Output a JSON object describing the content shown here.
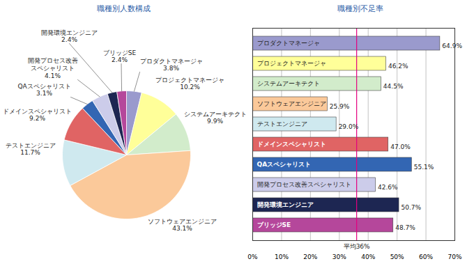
{
  "chart_data": [
    {
      "type": "pie",
      "title": "職種別人数構成",
      "categories": [
        "プロダクトマネージャ",
        "プロジェクトマネージャ",
        "システムアーキテクト",
        "ソフトウェアエンジニア",
        "テストエンジニア",
        "ドメインスペシャリスト",
        "QAスペシャリスト",
        "開発プロセス改善スペシャリスト",
        "開発環境エンジニア",
        "ブリッジSE"
      ],
      "values": [
        3.8,
        10.2,
        9.9,
        43.1,
        11.7,
        9.2,
        3.1,
        4.1,
        2.4,
        2.4
      ],
      "value_labels": [
        "3.8%",
        "10.2%",
        "9.9%",
        "43.1%",
        "11.7%",
        "9.2%",
        "3.1%",
        "4.1%",
        "2.4%",
        "2.4%"
      ],
      "colors": [
        "#9a9acd",
        "#ffff99",
        "#d2eccb",
        "#fbc99a",
        "#cfe9ef",
        "#e06464",
        "#3366b3",
        "#ccccea",
        "#1d2652",
        "#b5479b"
      ],
      "data_labels": true
    },
    {
      "type": "bar",
      "title": "職種別不足率",
      "orientation": "horizontal",
      "categories": [
        "プロダクトマネージャ",
        "プロジェクトマネージャ",
        "システムアーキテクト",
        "ソフトウェアエンジニア",
        "テストエンジニア",
        "ドメインスペシャリスト",
        "QAスペシャリスト",
        "開発プロセス改善スペシャリスト",
        "開発環境エンジニア",
        "ブリッジSE"
      ],
      "values": [
        64.9,
        46.2,
        44.5,
        25.9,
        29.0,
        47.0,
        55.1,
        42.6,
        50.7,
        48.7
      ],
      "value_labels": [
        "64.9%",
        "46.2%",
        "44.5%",
        "25.9%",
        "29.0%",
        "47.0%",
        "55.1%",
        "42.6%",
        "50.7%",
        "48.7%"
      ],
      "colors": [
        "#9a9acd",
        "#ffff99",
        "#d2eccb",
        "#fbc99a",
        "#cfe9ef",
        "#e06464",
        "#3366b3",
        "#ccccea",
        "#1d2652",
        "#b5479b"
      ],
      "xlim": [
        0,
        70
      ],
      "xticks": [
        {
          "value": 0,
          "label": "0%"
        },
        {
          "value": 10,
          "label": "10%"
        },
        {
          "value": 20,
          "label": "20%"
        },
        {
          "value": 30,
          "label": "30%"
        },
        {
          "value": 40,
          "label": "40%"
        },
        {
          "value": 50,
          "label": "50%"
        },
        {
          "value": 60,
          "label": "60%"
        },
        {
          "value": 70,
          "label": "70%"
        }
      ],
      "grid": true,
      "data_labels": true,
      "tick_labels": "x",
      "annotations": [
        {
          "value": 36,
          "label": "平均36%"
        }
      ]
    }
  ]
}
